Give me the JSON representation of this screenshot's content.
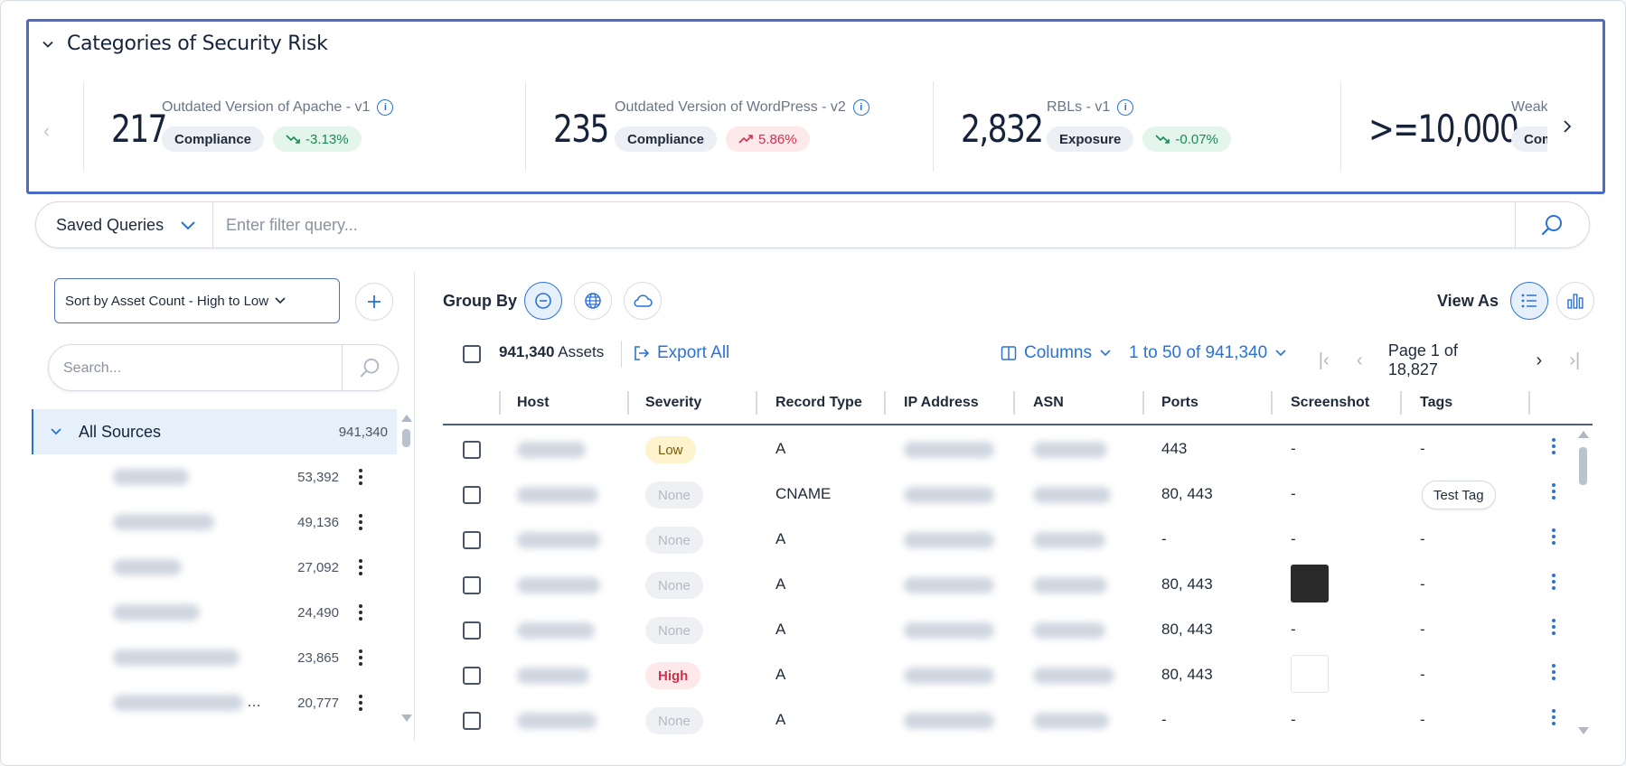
{
  "risk_panel": {
    "title": "Categories of Security Risk",
    "cards": [
      {
        "value": "217",
        "label": "Outdated Version of Apache - v1",
        "category": "Compliance",
        "trend": "-3.13%",
        "trend_dir": "down"
      },
      {
        "value": "235",
        "label": "Outdated Version of WordPress - v2",
        "category": "Compliance",
        "trend": "5.86%",
        "trend_dir": "up"
      },
      {
        "value": "2,832",
        "label": "RBLs - v1",
        "category": "Exposure",
        "trend": "-0.07%",
        "trend_dir": "down"
      },
      {
        "value": ">=10,000",
        "label": "Weak SSL",
        "category": "Compliance",
        "trend": "",
        "trend_dir": ""
      }
    ]
  },
  "filter": {
    "saved_queries_label": "Saved Queries",
    "placeholder": "Enter filter query..."
  },
  "sidebar": {
    "sort_label": "Sort by Asset Count - High to Low",
    "search_placeholder": "Search...",
    "all_sources": {
      "label": "All Sources",
      "count": "941,340"
    },
    "sources": [
      {
        "count": "53,392"
      },
      {
        "count": "49,136"
      },
      {
        "count": "27,092"
      },
      {
        "count": "24,490"
      },
      {
        "count": "23,865"
      },
      {
        "count": "20,777"
      }
    ]
  },
  "table": {
    "group_by_label": "Group By",
    "view_as_label": "View As",
    "asset_count": "941,340",
    "asset_word": "Assets",
    "export_label": "Export All",
    "columns_label": "Columns",
    "range_label": "1 to 50 of 941,340",
    "page_label": "Page 1 of 18,827",
    "headers": [
      "Host",
      "Severity",
      "Record Type",
      "IP Address",
      "ASN",
      "Ports",
      "Screenshot",
      "Tags"
    ],
    "rows": [
      {
        "severity": "Low",
        "sev_class": "low",
        "record_type": "A",
        "ports": "443",
        "screenshot": "-",
        "tags": "-"
      },
      {
        "severity": "None",
        "sev_class": "none",
        "record_type": "CNAME",
        "ports": "80, 443",
        "screenshot": "-",
        "tags": "Test Tag"
      },
      {
        "severity": "None",
        "sev_class": "none",
        "record_type": "A",
        "ports": "-",
        "screenshot": "-",
        "tags": "-"
      },
      {
        "severity": "None",
        "sev_class": "none",
        "record_type": "A",
        "ports": "80, 443",
        "screenshot": "",
        "tags": "-"
      },
      {
        "severity": "None",
        "sev_class": "none",
        "record_type": "A",
        "ports": "80, 443",
        "screenshot": "-",
        "tags": "-"
      },
      {
        "severity": "High",
        "sev_class": "high",
        "record_type": "A",
        "ports": "80, 443",
        "screenshot": "",
        "tags": "-"
      },
      {
        "severity": "None",
        "sev_class": "none",
        "record_type": "A",
        "ports": "-",
        "screenshot": "-",
        "tags": "-"
      }
    ]
  },
  "icons": {
    "collapse": "chevron-down-icon",
    "info": "info-icon",
    "trend_down": "trend-down-icon",
    "trend_up": "trend-up-icon",
    "search": "search-icon",
    "plus": "plus-icon",
    "export": "export-icon",
    "columns": "columns-icon",
    "list": "list-view-icon",
    "chart": "chart-view-icon",
    "globe": "globe-icon",
    "cloud": "cloud-icon",
    "none": "minus-circle-icon"
  },
  "colors": {
    "accent": "#2a72d4",
    "panel_border": "#4a6cc4",
    "trend_down": "#1a8a52",
    "trend_up": "#d3304b",
    "severity_low_bg": "#fdf3cc",
    "severity_high": "#d3304b"
  }
}
